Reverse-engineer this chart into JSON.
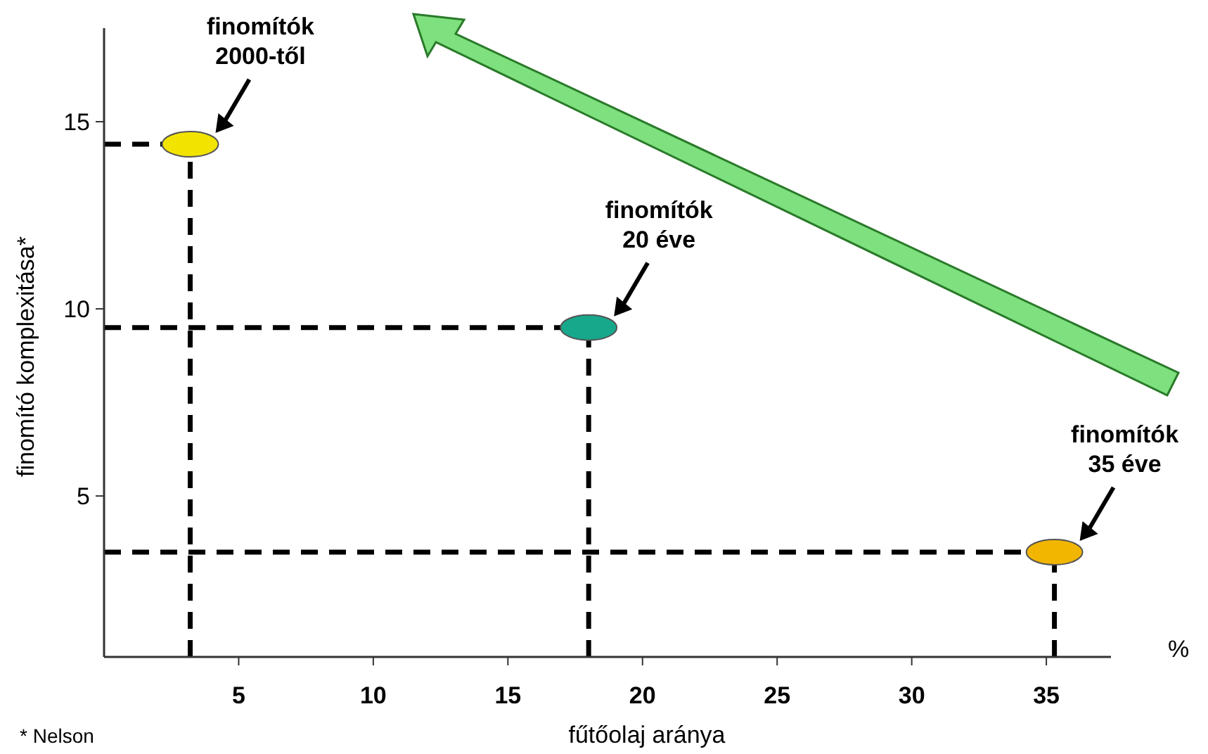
{
  "chart_data": {
    "type": "scatter",
    "xlabel": "fűtőolaj aránya",
    "ylabel": "finomító komplexitása*",
    "x": [
      3.2,
      18,
      35.3
    ],
    "series": [
      {
        "values": [
          14.4,
          9.5,
          3.5
        ],
        "colors": [
          "#f2e400",
          "#17a88c",
          "#f2b600"
        ]
      }
    ],
    "marker": "circle",
    "xlim": [
      0,
      37.4
    ],
    "xticks": [
      5,
      10,
      15,
      20,
      25,
      30,
      35
    ],
    "ylim": [
      0.7,
      17.5
    ],
    "yticks": [
      5,
      10,
      15
    ],
    "grid": false,
    "ref_lines": [
      {
        "axis": "y",
        "value": 14.4,
        "line_style": "dashed",
        "color": "#000000"
      },
      {
        "axis": "x",
        "value": 3.2,
        "line_style": "dashed",
        "color": "#000000"
      },
      {
        "axis": "y",
        "value": 9.5,
        "line_style": "dashed",
        "color": "#000000"
      },
      {
        "axis": "x",
        "value": 18,
        "line_style": "dashed",
        "color": "#000000"
      },
      {
        "axis": "y",
        "value": 3.5,
        "line_style": "dashed",
        "color": "#000000"
      },
      {
        "axis": "x",
        "value": 35.3,
        "line_style": "dashed",
        "color": "#000000"
      }
    ],
    "annotations": [
      "finomítók\n2000-től",
      "finomítók\n20 éve",
      "finomítók\n35 éve",
      "%",
      "* Nelson"
    ]
  }
}
